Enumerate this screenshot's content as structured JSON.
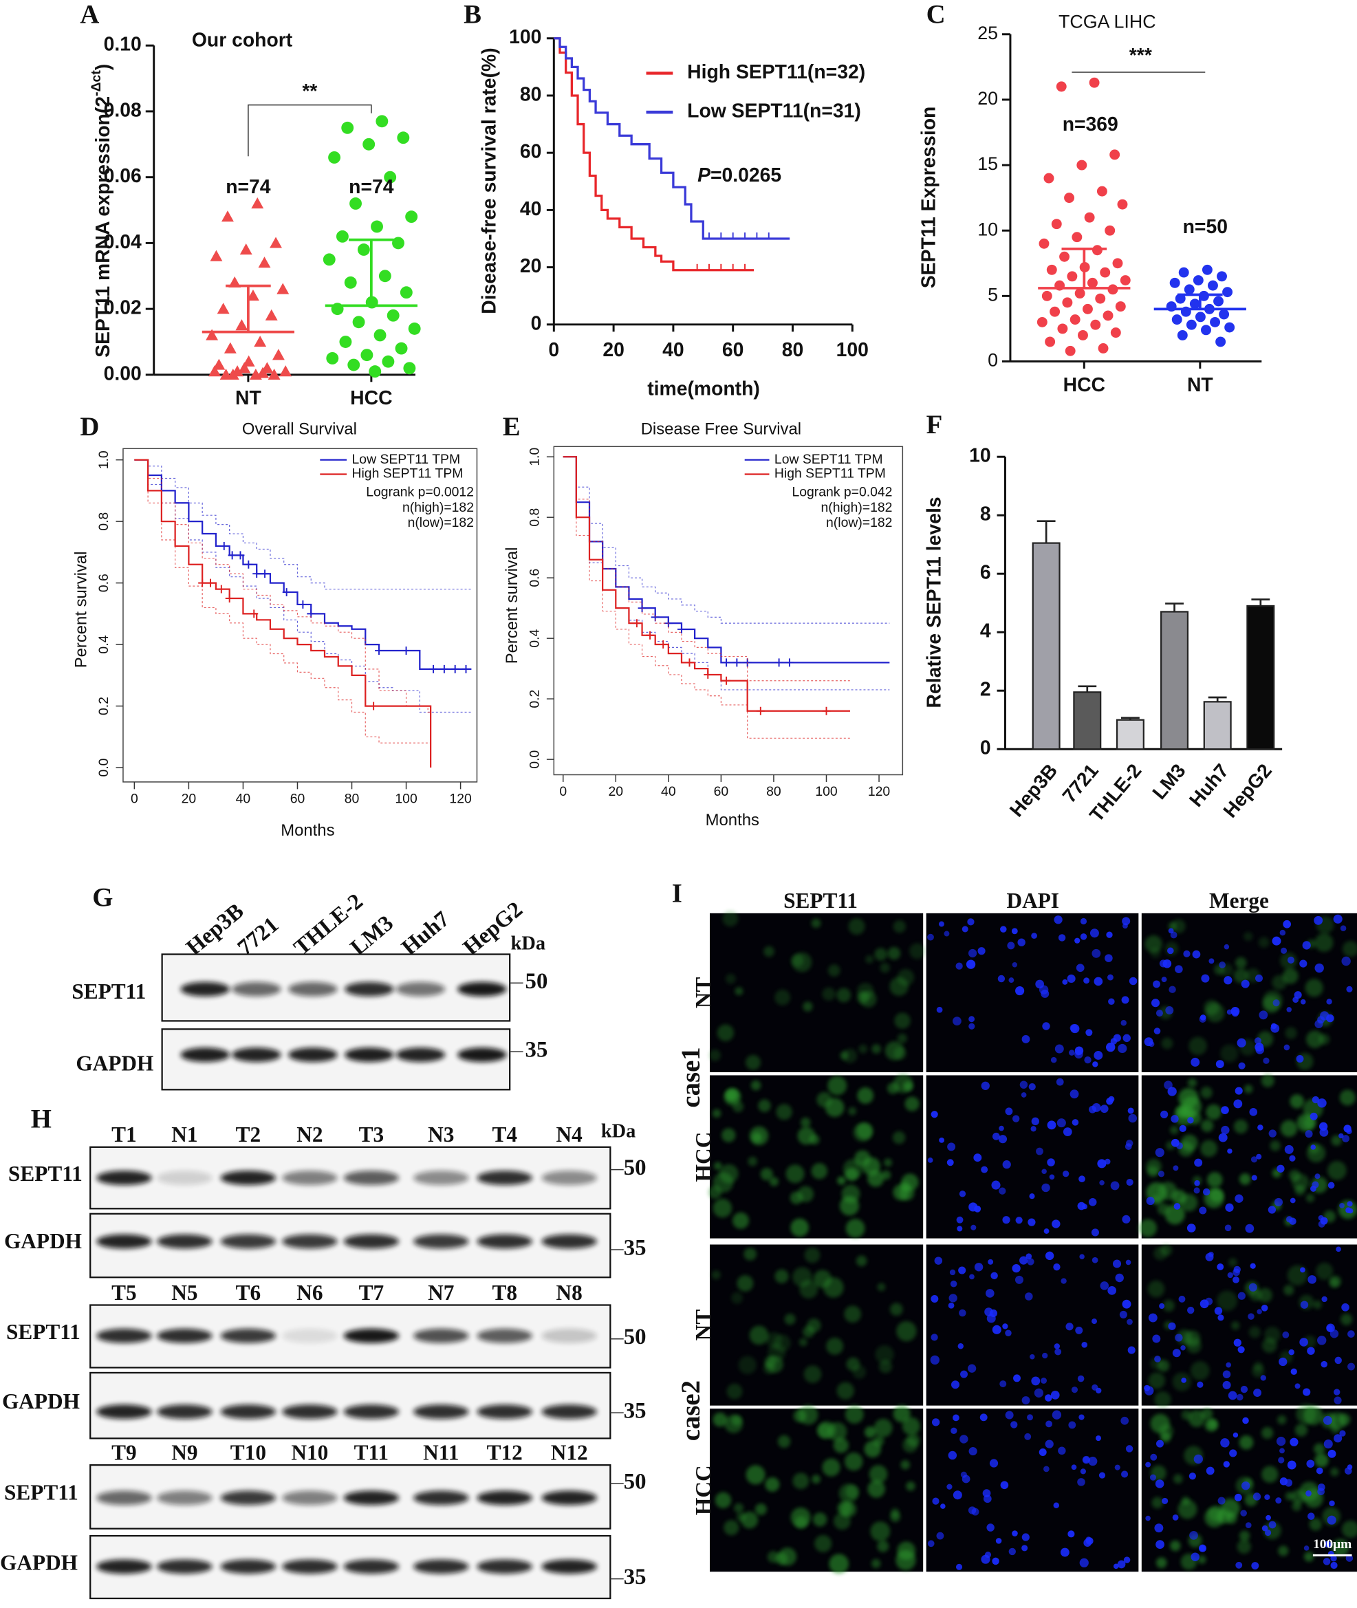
{
  "chart_data": [
    {
      "type": "scatter",
      "panel": "A",
      "title": "Our cohort",
      "ylabel": [
        "SEPT11 mRNA expression(2",
        "-Δct",
        ")"
      ],
      "categories": [
        "NT",
        "HCC"
      ],
      "series": [
        {
          "color": "#ee4b4b",
          "marker": "triangle",
          "mean": 0.013,
          "sd": 0.014,
          "values": [
            0.052,
            0.048,
            0.04,
            0.038,
            0.036,
            0.034,
            0.028,
            0.026,
            0.024,
            0.02,
            0.018,
            0.015,
            0.012,
            0.01,
            0.008,
            0.006,
            0.004,
            0.003,
            0.002,
            0.001,
            0.001,
            0.0,
            0.0,
            0.0,
            0.002,
            0.001,
            0.0005,
            0.0
          ]
        },
        {
          "color": "#33dd22",
          "marker": "circle",
          "mean": 0.021,
          "sd": 0.02,
          "values": [
            0.077,
            0.075,
            0.072,
            0.07,
            0.066,
            0.06,
            0.052,
            0.048,
            0.045,
            0.042,
            0.04,
            0.038,
            0.035,
            0.03,
            0.028,
            0.025,
            0.022,
            0.02,
            0.018,
            0.016,
            0.014,
            0.012,
            0.01,
            0.008,
            0.006,
            0.005,
            0.004,
            0.003,
            0.002,
            0.001
          ]
        }
      ],
      "ylim": [
        0,
        0.1
      ],
      "yticks": [
        {
          "value": 0,
          "label": "0.00"
        },
        {
          "value": 0.02,
          "label": "0.02"
        },
        {
          "value": 0.04,
          "label": "0.04"
        },
        {
          "value": 0.06,
          "label": "0.06"
        },
        {
          "value": 0.08,
          "label": "0.08"
        },
        {
          "value": 0.1,
          "label": "0.10"
        }
      ],
      "annotations": [
        "n=74",
        "n=74",
        "**"
      ]
    },
    {
      "type": "km",
      "panel": "B",
      "xlabel": "time(month)",
      "ylabel": "Disease-free survival rate(%)",
      "xlim": [
        0,
        100
      ],
      "xticks": [
        0,
        20,
        40,
        60,
        80,
        100
      ],
      "ylim": [
        0,
        100
      ],
      "yticks": [
        0,
        20,
        40,
        60,
        80,
        100
      ],
      "series": [
        {
          "name": "High SEPT11(n=32)",
          "color": "#e8262a",
          "x": [
            0,
            2,
            4,
            6,
            8,
            10,
            12,
            14,
            16,
            18,
            22,
            26,
            30,
            34,
            36,
            40,
            67
          ],
          "values": [
            100,
            95,
            88,
            80,
            70,
            60,
            52,
            45,
            40,
            37,
            34,
            30,
            27,
            24,
            22,
            19,
            19
          ],
          "censored": [
            48,
            52,
            56,
            60,
            64
          ]
        },
        {
          "name": "Low SEPT11(n=31)",
          "color": "#3a3ad8",
          "x": [
            0,
            2,
            4,
            6,
            8,
            10,
            12,
            14,
            18,
            22,
            26,
            32,
            36,
            40,
            44,
            46,
            50,
            79
          ],
          "values": [
            100,
            97,
            93,
            90,
            86,
            82,
            78,
            74,
            70,
            66,
            63,
            58,
            53,
            48,
            42,
            36,
            30,
            30
          ],
          "censored": [
            52,
            56,
            60,
            64,
            68,
            72
          ]
        }
      ],
      "p_label": "P",
      "p_value": "=0.0265"
    },
    {
      "type": "scatter",
      "panel": "C",
      "title": "TCGA LIHC",
      "ylabel": [
        "SEPT11  Expression"
      ],
      "categories": [
        "HCC",
        "NT"
      ],
      "series": [
        {
          "color": "#f0404a",
          "marker": "circle",
          "mean": 5.6,
          "sd": 3.0,
          "values": [
            21.3,
            21.0,
            15.8,
            15,
            14,
            13,
            12.5,
            12,
            11,
            10.5,
            10,
            9.5,
            9,
            8.5,
            8,
            7.5,
            7.2,
            7,
            6.8,
            6.5,
            6.2,
            6,
            5.8,
            5.5,
            5.2,
            5,
            4.8,
            4.5,
            4.2,
            4,
            3.8,
            3.5,
            3.2,
            3,
            2.8,
            2.5,
            2.2,
            2,
            1.5,
            1.0,
            0.8
          ]
        },
        {
          "color": "#2233ee",
          "marker": "circle",
          "mean": 4.0,
          "sd": 1.1,
          "values": [
            7.0,
            6.8,
            6.5,
            6.2,
            6,
            5.8,
            5.5,
            5.3,
            5,
            4.8,
            4.6,
            4.4,
            4.2,
            4.0,
            3.8,
            3.6,
            3.4,
            3.2,
            3.0,
            2.8,
            2.6,
            2.4,
            2.0,
            1.5
          ]
        }
      ],
      "ylim": [
        0,
        25
      ],
      "yticks": [
        0,
        5,
        10,
        15,
        20,
        25
      ],
      "annotations": [
        "n=369",
        "n=50",
        "***"
      ]
    },
    {
      "type": "km",
      "panel": "D",
      "title": "Overall Survival",
      "xlabel": "Months",
      "ylabel": "Percent survival",
      "xlim": [
        0,
        120
      ],
      "xticks": [
        0,
        20,
        40,
        60,
        80,
        100,
        120
      ],
      "ylim": [
        0,
        1
      ],
      "yticks": [
        {
          "value": 0,
          "label": "0.0"
        },
        0.2,
        0.4,
        0.6,
        0.8,
        {
          "value": 1,
          "label": "1.0"
        }
      ],
      "series": [
        {
          "name": "Low SEPT11 TPM",
          "color": "#2222cc",
          "x": [
            0,
            5,
            10,
            15,
            20,
            25,
            30,
            35,
            40,
            45,
            50,
            55,
            60,
            65,
            70,
            75,
            80,
            85,
            90,
            95,
            105,
            124
          ],
          "values": [
            1,
            0.95,
            0.9,
            0.86,
            0.8,
            0.76,
            0.72,
            0.69,
            0.66,
            0.63,
            0.6,
            0.57,
            0.53,
            0.5,
            0.47,
            0.46,
            0.45,
            0.4,
            0.38,
            0.38,
            0.32,
            0.32
          ],
          "upper": [
            1,
            0.98,
            0.94,
            0.91,
            0.86,
            0.82,
            0.79,
            0.76,
            0.73,
            0.71,
            0.68,
            0.66,
            0.62,
            0.6,
            0.58,
            0.58,
            0.58,
            0.58,
            0.58,
            0.58,
            0.58,
            0.58
          ],
          "lower": [
            1,
            0.92,
            0.86,
            0.81,
            0.74,
            0.7,
            0.65,
            0.62,
            0.59,
            0.55,
            0.52,
            0.48,
            0.44,
            0.41,
            0.37,
            0.35,
            0.33,
            0.28,
            0.26,
            0.25,
            0.18,
            0.18
          ],
          "censored": [
            33,
            36,
            39,
            42,
            45,
            48,
            56,
            62,
            65,
            90,
            100,
            110,
            114,
            118,
            122
          ]
        },
        {
          "name": "High SEPT11 TPM",
          "color": "#dd2222",
          "x": [
            0,
            5,
            10,
            15,
            20,
            25,
            30,
            35,
            40,
            45,
            50,
            55,
            60,
            65,
            70,
            75,
            80,
            85,
            90,
            100,
            108,
            109
          ],
          "values": [
            1,
            0.9,
            0.8,
            0.72,
            0.66,
            0.6,
            0.58,
            0.55,
            0.5,
            0.48,
            0.45,
            0.42,
            0.4,
            0.38,
            0.36,
            0.33,
            0.3,
            0.2,
            0.2,
            0.2,
            0.2,
            0
          ],
          "upper": [
            1,
            0.94,
            0.86,
            0.79,
            0.73,
            0.68,
            0.66,
            0.63,
            0.58,
            0.56,
            0.53,
            0.51,
            0.49,
            0.47,
            0.46,
            0.44,
            0.42,
            0.32,
            0.25,
            0.2,
            0.18,
            0.18
          ],
          "lower": [
            1,
            0.86,
            0.74,
            0.65,
            0.59,
            0.52,
            0.5,
            0.47,
            0.42,
            0.4,
            0.37,
            0.34,
            0.31,
            0.29,
            0.26,
            0.22,
            0.18,
            0.1,
            0.08,
            0.08,
            0.08,
            0.08
          ],
          "censored": [
            25,
            28,
            32,
            35,
            44,
            88
          ]
        }
      ],
      "annotations": [
        "Logrank p=0.0012",
        "n(high)=182",
        "n(low)=182"
      ]
    },
    {
      "type": "km",
      "panel": "E",
      "title": "Disease Free Survival",
      "xlabel": "Months",
      "ylabel": "Percent survival",
      "xlim": [
        0,
        120
      ],
      "xticks": [
        0,
        20,
        40,
        60,
        80,
        100,
        120
      ],
      "ylim": [
        0,
        1
      ],
      "yticks": [
        {
          "value": 0,
          "label": "0.0"
        },
        0.2,
        0.4,
        0.6,
        0.8,
        {
          "value": 1,
          "label": "1.0"
        }
      ],
      "series": [
        {
          "name": "Low SEPT11 TPM",
          "color": "#2222cc",
          "x": [
            0,
            5,
            10,
            15,
            20,
            25,
            30,
            35,
            40,
            45,
            50,
            55,
            60,
            70,
            80,
            90,
            100,
            110,
            124
          ],
          "values": [
            1,
            0.85,
            0.72,
            0.63,
            0.57,
            0.53,
            0.5,
            0.47,
            0.45,
            0.43,
            0.4,
            0.37,
            0.32,
            0.32,
            0.32,
            0.32,
            0.32,
            0.32,
            0.32
          ],
          "upper": [
            1,
            0.9,
            0.78,
            0.7,
            0.64,
            0.6,
            0.57,
            0.55,
            0.53,
            0.51,
            0.49,
            0.47,
            0.45,
            0.45,
            0.45,
            0.45,
            0.45,
            0.45,
            0.45
          ],
          "lower": [
            1,
            0.8,
            0.65,
            0.56,
            0.5,
            0.46,
            0.42,
            0.39,
            0.37,
            0.35,
            0.32,
            0.28,
            0.23,
            0.23,
            0.23,
            0.23,
            0.23,
            0.23,
            0.23
          ],
          "censored": [
            30,
            35,
            40,
            45,
            62,
            66,
            70,
            82,
            86
          ]
        },
        {
          "name": "High SEPT11 TPM",
          "color": "#dd2222",
          "x": [
            0,
            5,
            10,
            15,
            20,
            25,
            30,
            35,
            40,
            45,
            50,
            55,
            60,
            65,
            70,
            75,
            90,
            100,
            109
          ],
          "values": [
            1,
            0.8,
            0.66,
            0.56,
            0.5,
            0.45,
            0.41,
            0.38,
            0.35,
            0.32,
            0.3,
            0.28,
            0.26,
            0.26,
            0.16,
            0.16,
            0.16,
            0.16,
            0.16
          ],
          "upper": [
            1,
            0.86,
            0.72,
            0.63,
            0.57,
            0.52,
            0.48,
            0.45,
            0.42,
            0.39,
            0.37,
            0.35,
            0.34,
            0.34,
            0.26,
            0.26,
            0.26,
            0.26,
            0.26
          ],
          "lower": [
            1,
            0.74,
            0.59,
            0.49,
            0.43,
            0.38,
            0.34,
            0.31,
            0.28,
            0.25,
            0.23,
            0.21,
            0.18,
            0.18,
            0.07,
            0.07,
            0.07,
            0.07,
            0.07
          ],
          "censored": [
            28,
            33,
            38,
            48,
            55,
            62,
            75,
            100
          ]
        }
      ],
      "annotations": [
        "Logrank p=0.042",
        "n(high)=182",
        "n(low)=182"
      ]
    },
    {
      "type": "bar",
      "panel": "F",
      "ylabel": "Relative SEPT11 levels",
      "categories": [
        "Hep3B",
        "7721",
        "THLE-2",
        "LM3",
        "Huh7",
        "HepG2"
      ],
      "values": [
        7.05,
        1.95,
        1.0,
        4.7,
        1.62,
        4.9
      ],
      "errors": [
        0.75,
        0.2,
        0.07,
        0.28,
        0.15,
        0.22
      ],
      "colors": [
        "#a0a0a8",
        "#5a5a5a",
        "#d4d4d8",
        "#8a8a8f",
        "#c0c0c6",
        "#0a0a0a"
      ],
      "ylim": [
        0,
        10
      ],
      "yticks": [
        0,
        2,
        4,
        6,
        8,
        10
      ]
    }
  ],
  "blots": {
    "G": {
      "panel": "G",
      "unit": "kDa",
      "lanes": [
        "Hep3B",
        "7721",
        "THLE-2",
        "LM3",
        "Huh7",
        "HepG2"
      ],
      "rows": [
        {
          "label": "SEPT11",
          "marker": 50
        },
        {
          "label": "GAPDH",
          "marker": 35
        }
      ]
    },
    "H": {
      "panel": "H",
      "unit": "kDa",
      "blocks": [
        {
          "lanes": [
            "T1",
            "N1",
            "T2",
            "N2",
            "T3",
            "N3",
            "T4",
            "N4"
          ],
          "rows": [
            {
              "label": "SEPT11",
              "marker": 50
            },
            {
              "label": "GAPDH",
              "marker": 35
            }
          ]
        },
        {
          "lanes": [
            "T5",
            "N5",
            "T6",
            "N6",
            "T7",
            "N7",
            "T8",
            "N8"
          ],
          "rows": [
            {
              "label": "SEPT11",
              "marker": 50
            },
            {
              "label": "GAPDH",
              "marker": 35
            }
          ]
        },
        {
          "lanes": [
            "T9",
            "N9",
            "T10",
            "N10",
            "T11",
            "N11",
            "T12",
            "N12"
          ],
          "rows": [
            {
              "label": "SEPT11",
              "marker": 50
            },
            {
              "label": "GAPDH",
              "marker": 35
            }
          ]
        }
      ]
    }
  },
  "if_panel": {
    "panel": "I",
    "columns": [
      "SEPT11",
      "DAPI",
      "Merge"
    ],
    "rows": [
      "NT",
      "HCC",
      "NT",
      "HCC"
    ],
    "cases": [
      "case1",
      "case2"
    ],
    "scale": "100μm"
  }
}
